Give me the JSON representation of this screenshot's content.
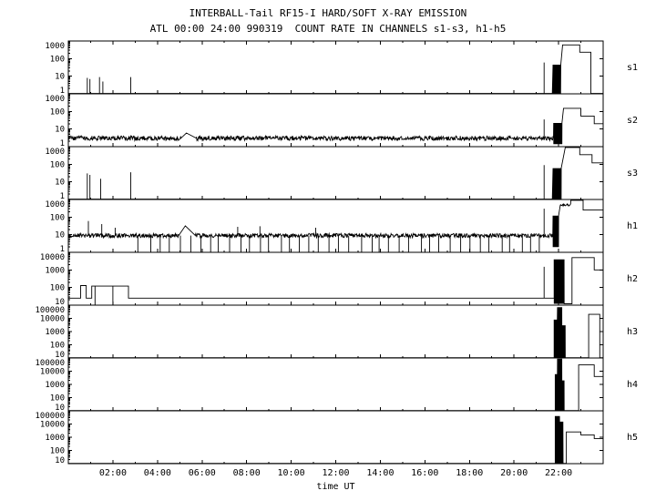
{
  "page": {
    "background": "#ffffff",
    "line_color": "#000000"
  },
  "chart_data": {
    "type": "line",
    "title": "INTERBALL-Tail RF15-I HARD/SOFT X-RAY EMISSION",
    "subtitle": "ATL 00:00 24:00 990319  COUNT RATE IN CHANNELS s1-s3, h1-h5",
    "xlabel": "time UT",
    "x_range_hours": [
      0,
      24
    ],
    "x_axis_unit": "time UT",
    "grid": false,
    "scale": "log",
    "x_major_ticks": [
      {
        "hour": 2,
        "label": "02:00"
      },
      {
        "hour": 4,
        "label": "04:00"
      },
      {
        "hour": 6,
        "label": "06:00"
      },
      {
        "hour": 8,
        "label": "08:00"
      },
      {
        "hour": 10,
        "label": "10:00"
      },
      {
        "hour": 12,
        "label": "12:00"
      },
      {
        "hour": 14,
        "label": "14:00"
      },
      {
        "hour": 16,
        "label": "16:00"
      },
      {
        "hour": 18,
        "label": "18:00"
      },
      {
        "hour": 20,
        "label": "20:00"
      },
      {
        "hour": 22,
        "label": "22:00"
      }
    ],
    "panels": [
      {
        "label": "s1",
        "ymin": 1,
        "ymax": 1000,
        "y_ticks": [
          "1000",
          "100",
          "10",
          "1"
        ],
        "segments": [
          {
            "t0": 0,
            "t1": 21.72,
            "v": 1.05
          },
          {
            "t0": 21.75,
            "t1": 22.1,
            "osc": [
              1.05,
              45
            ]
          },
          {
            "t0": 22.1,
            "t1": 22.18,
            "v0": 45,
            "v1": 600
          },
          {
            "t0": 22.18,
            "t1": 22.95,
            "v": 600
          },
          {
            "t0": 22.95,
            "t1": 23.45,
            "v": 230
          },
          {
            "t0": 23.45,
            "t1": 24,
            "v": 1.05
          }
        ],
        "spikes": [
          [
            0.85,
            1.05,
            8
          ],
          [
            0.97,
            1.05,
            7
          ],
          [
            1.4,
            1.05,
            9
          ],
          [
            1.55,
            1.05,
            5
          ],
          [
            2.8,
            1.05,
            9
          ],
          [
            21.35,
            1.05,
            60
          ]
        ]
      },
      {
        "label": "s2",
        "ymin": 1,
        "ymax": 1000,
        "y_ticks": [
          "1000",
          "100",
          "10",
          "1"
        ],
        "segments": [
          {
            "t0": 0,
            "t1": 5.05,
            "v": 3,
            "noise": 0.13
          },
          {
            "t0": 5.05,
            "t1": 5.3,
            "v0": 3,
            "v1": 6
          },
          {
            "t0": 5.3,
            "t1": 5.75,
            "v0": 6,
            "v1": 3
          },
          {
            "t0": 5.75,
            "t1": 21.78,
            "v": 3,
            "noise": 0.13
          },
          {
            "t0": 21.78,
            "t1": 22.15,
            "osc": [
              1.4,
              22
            ]
          },
          {
            "t0": 22.15,
            "t1": 22.22,
            "v0": 22,
            "v1": 150
          },
          {
            "t0": 22.22,
            "t1": 23.0,
            "v": 150
          },
          {
            "t0": 23.0,
            "t1": 23.6,
            "v": 55
          },
          {
            "t0": 23.6,
            "t1": 24,
            "v": 20
          }
        ],
        "spikes": [
          [
            21.35,
            3,
            35
          ]
        ]
      },
      {
        "label": "s3",
        "ymin": 1,
        "ymax": 1000,
        "y_ticks": [
          "1000",
          "100",
          "10",
          "1"
        ],
        "segments": [
          {
            "t0": 0,
            "t1": 21.72,
            "v": 1.05
          },
          {
            "t0": 21.75,
            "t1": 22.12,
            "osc": [
              1.05,
              60
            ]
          },
          {
            "t0": 22.12,
            "t1": 22.3,
            "v0": 60,
            "v1": 900
          },
          {
            "t0": 22.3,
            "t1": 22.95,
            "v": 900
          },
          {
            "t0": 22.95,
            "t1": 23.5,
            "v": 350
          },
          {
            "t0": 23.5,
            "t1": 24,
            "v": 120
          }
        ],
        "spikes": [
          [
            0.85,
            1.05,
            30
          ],
          [
            0.97,
            1.05,
            25
          ],
          [
            1.45,
            1.05,
            15
          ],
          [
            2.8,
            1.05,
            35
          ],
          [
            21.35,
            1.05,
            90
          ]
        ]
      },
      {
        "label": "h1",
        "ymin": 1,
        "ymax": 1000,
        "y_ticks": [
          "1000",
          "100",
          "10",
          "1"
        ],
        "segments": [
          {
            "t0": 0,
            "t1": 4.95,
            "v": 9,
            "noise": 0.12
          },
          {
            "t0": 4.95,
            "t1": 5.25,
            "v0": 9,
            "v1": 32
          },
          {
            "t0": 5.25,
            "t1": 5.7,
            "v0": 32,
            "v1": 9
          },
          {
            "t0": 5.7,
            "t1": 21.75,
            "v": 9,
            "noise": 0.12
          },
          {
            "t0": 21.75,
            "t1": 22.0,
            "osc": [
              2,
              120
            ]
          },
          {
            "t0": 22.0,
            "t1": 22.08,
            "v0": 120,
            "v1": 500
          },
          {
            "t0": 22.08,
            "t1": 22.55,
            "v": 500,
            "noise": 0.06
          },
          {
            "t0": 22.55,
            "t1": 23.1,
            "v": 900
          },
          {
            "t0": 23.1,
            "t1": 24,
            "v": 250
          }
        ],
        "spikes": [
          [
            0.9,
            9,
            60
          ],
          [
            1.5,
            9,
            40
          ],
          [
            2.1,
            9,
            25
          ],
          [
            7.6,
            9,
            28
          ],
          [
            8.6,
            9,
            30
          ],
          [
            11.1,
            9,
            25
          ],
          [
            21.35,
            9,
            300
          ]
        ],
        "dropouts": {
          "t0": 3.2,
          "t1": 21.5,
          "dt": 0.45,
          "from": 9,
          "to": 1.05,
          "jitter": 0.18
        }
      },
      {
        "label": "h2",
        "ymin": 10,
        "ymax": 10000,
        "y_ticks": [
          "10000",
          "1000",
          "100",
          "10"
        ],
        "segments": [
          {
            "t0": 0,
            "t1": 0.55,
            "v": 25
          },
          {
            "t0": 0.55,
            "t1": 0.8,
            "v": 130
          },
          {
            "t0": 0.8,
            "t1": 1.05,
            "v": 25
          },
          {
            "t0": 1.05,
            "t1": 2.7,
            "v": 120
          },
          {
            "t0": 2.7,
            "t1": 21.8,
            "v": 25
          },
          {
            "t0": 21.8,
            "t1": 22.25,
            "osc": [
              12,
              4000
            ]
          },
          {
            "t0": 22.25,
            "t1": 22.6,
            "v": 12
          },
          {
            "t0": 22.6,
            "t1": 23.6,
            "v": 5000
          },
          {
            "t0": 23.6,
            "t1": 24,
            "v": 1000
          }
        ],
        "spikes": [
          [
            1.2,
            120,
            10.5
          ],
          [
            2.0,
            120,
            10.5
          ],
          [
            21.35,
            25,
            1500
          ]
        ]
      },
      {
        "label": "h3",
        "ymin": 10,
        "ymax": 100000,
        "y_ticks": [
          "100000",
          "10000",
          "1000",
          "100",
          "10"
        ],
        "segments": [
          {
            "t0": 0,
            "t1": 21.8,
            "v": 10.5
          },
          {
            "t0": 21.8,
            "t1": 21.95,
            "osc": [
              10.5,
              8000
            ]
          },
          {
            "t0": 21.95,
            "t1": 22.15,
            "osc": [
              10.5,
              70000
            ]
          },
          {
            "t0": 22.15,
            "t1": 22.3,
            "osc": [
              10.5,
              3000
            ]
          },
          {
            "t0": 22.3,
            "t1": 23.35,
            "v": 10.5
          },
          {
            "t0": 23.35,
            "t1": 23.85,
            "v": 20000
          },
          {
            "t0": 23.85,
            "t1": 24,
            "v": 10.5
          }
        ]
      },
      {
        "label": "h4",
        "ymin": 10,
        "ymax": 100000,
        "y_ticks": [
          "100000",
          "10000",
          "1000",
          "100",
          "10"
        ],
        "segments": [
          {
            "t0": 0,
            "t1": 21.85,
            "v": 10.5
          },
          {
            "t0": 21.85,
            "t1": 21.95,
            "osc": [
              10.5,
              6000
            ]
          },
          {
            "t0": 21.95,
            "t1": 22.15,
            "osc": [
              10.5,
              90000
            ]
          },
          {
            "t0": 22.15,
            "t1": 22.25,
            "osc": [
              10.5,
              2000
            ]
          },
          {
            "t0": 22.25,
            "t1": 22.9,
            "v": 10.5
          },
          {
            "t0": 22.9,
            "t1": 23.6,
            "v": 30000
          },
          {
            "t0": 23.6,
            "t1": 24,
            "v": 4000
          }
        ]
      },
      {
        "label": "h5",
        "ymin": 10,
        "ymax": 100000,
        "y_ticks": [
          "100000",
          "10000",
          "1000",
          "100",
          "10"
        ],
        "segments": [
          {
            "t0": 0,
            "t1": 21.85,
            "v": 10.5
          },
          {
            "t0": 21.85,
            "t1": 22.05,
            "osc": [
              10.5,
              40000
            ]
          },
          {
            "t0": 22.05,
            "t1": 22.2,
            "osc": [
              10.5,
              15000
            ]
          },
          {
            "t0": 22.2,
            "t1": 22.35,
            "v": 10.5
          },
          {
            "t0": 22.35,
            "t1": 23.0,
            "v": 2500
          },
          {
            "t0": 23.0,
            "t1": 23.6,
            "v": 1500
          },
          {
            "t0": 23.6,
            "t1": 24,
            "v": 800
          }
        ]
      }
    ]
  }
}
